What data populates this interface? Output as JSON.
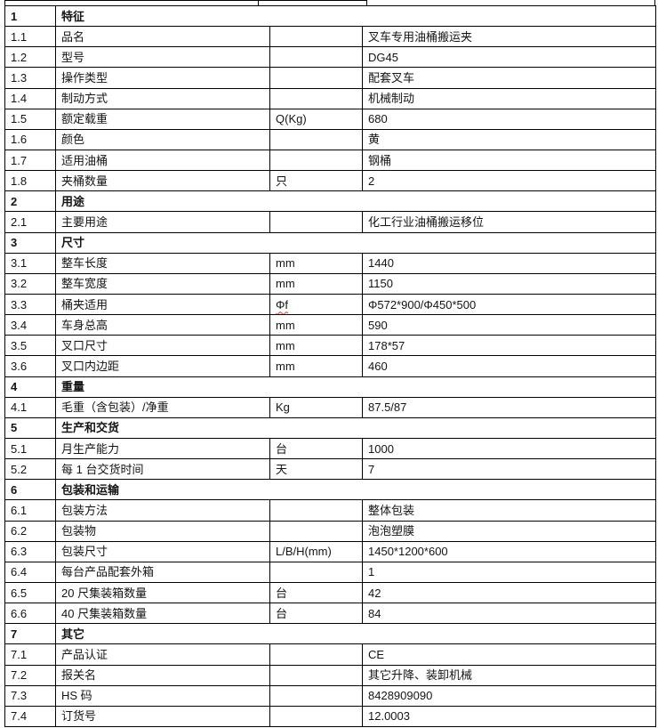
{
  "page": {
    "background": "#ffffff",
    "border_color": "#000000",
    "spellcheck_color": "#e03131"
  },
  "table": {
    "columns": [
      "no",
      "label",
      "unit",
      "value"
    ],
    "rows": [
      {
        "type": "section",
        "no": "1",
        "label": "特征"
      },
      {
        "type": "item",
        "no": "1.1",
        "label": "品名",
        "unit": "",
        "value": "叉车专用油桶搬运夹"
      },
      {
        "type": "item",
        "no": "1.2",
        "label": "型号",
        "unit": "",
        "value": "DG45"
      },
      {
        "type": "item",
        "no": "1.3",
        "label": "操作类型",
        "unit": "",
        "value": "配套叉车"
      },
      {
        "type": "item",
        "no": "1.4",
        "label": "制动方式",
        "unit": "",
        "value": "机械制动"
      },
      {
        "type": "item",
        "no": "1.5",
        "label": "额定载重",
        "unit": "Q(Kg)",
        "value": "680"
      },
      {
        "type": "item",
        "no": "1.6",
        "label": "颜色",
        "unit": "",
        "value": "黄"
      },
      {
        "type": "item",
        "no": "1.7",
        "label": "适用油桶",
        "unit": "",
        "value": "钢桶"
      },
      {
        "type": "item",
        "no": "1.8",
        "label": "夹桶数量",
        "unit": "只",
        "value": "2"
      },
      {
        "type": "section",
        "no": "2",
        "label": "用途"
      },
      {
        "type": "item",
        "no": "2.1",
        "label": "主要用途",
        "unit": "",
        "value": "化工行业油桶搬运移位"
      },
      {
        "type": "section",
        "no": "3",
        "label": "尺寸"
      },
      {
        "type": "item",
        "no": "3.1",
        "label": "整车长度",
        "unit": "mm",
        "value": "1440"
      },
      {
        "type": "item",
        "no": "3.2",
        "label": "整车宽度",
        "unit": "mm",
        "value": "1150"
      },
      {
        "type": "item",
        "no": "3.3",
        "label": "桶夹适用",
        "unit": "Φf",
        "value": "Φ572*900/Φ450*500",
        "unit_spellcheck": true
      },
      {
        "type": "item",
        "no": "3.4",
        "label": "车身总高",
        "unit": "mm",
        "value": "590"
      },
      {
        "type": "item",
        "no": "3.5",
        "label": "叉口尺寸",
        "unit": "mm",
        "value": "178*57"
      },
      {
        "type": "item",
        "no": "3.6",
        "label": "叉口内边距",
        "unit": "mm",
        "value": "460"
      },
      {
        "type": "section",
        "no": "4",
        "label": "重量"
      },
      {
        "type": "item",
        "no": "4.1",
        "label": "毛重（含包装）/净重",
        "unit": "Kg",
        "value": "87.5/87"
      },
      {
        "type": "section",
        "no": "5",
        "label": "生产和交货"
      },
      {
        "type": "item",
        "no": "5.1",
        "label": "月生产能力",
        "unit": "台",
        "value": "1000"
      },
      {
        "type": "item",
        "no": "5.2",
        "label": "每 1 台交货时间",
        "unit": "天",
        "value": "7"
      },
      {
        "type": "section",
        "no": "6",
        "label": "包装和运输"
      },
      {
        "type": "item",
        "no": "6.1",
        "label": "包装方法",
        "unit": "",
        "value": "整体包装"
      },
      {
        "type": "item",
        "no": "6.2",
        "label": "包装物",
        "unit": "",
        "value": "泡泡塑膜"
      },
      {
        "type": "item",
        "no": "6.3",
        "label": "包装尺寸",
        "unit": "L/B/H(mm)",
        "value": "1450*1200*600"
      },
      {
        "type": "item",
        "no": "6.4",
        "label": "每台产品配套外箱",
        "unit": "",
        "value": "1"
      },
      {
        "type": "item",
        "no": "6.5",
        "label": "20 尺集装箱数量",
        "unit": "台",
        "value": "42"
      },
      {
        "type": "item",
        "no": "6.6",
        "label": "40 尺集装箱数量",
        "unit": "台",
        "value": "84"
      },
      {
        "type": "section",
        "no": "7",
        "label": "其它"
      },
      {
        "type": "item",
        "no": "7.1",
        "label": "产品认证",
        "unit": "",
        "value": "CE"
      },
      {
        "type": "item",
        "no": "7.2",
        "label": "报关名",
        "unit": "",
        "value": "其它升降、装卸机械"
      },
      {
        "type": "item",
        "no": "7.3",
        "label": "HS 码",
        "unit": "",
        "value": "8428909090"
      },
      {
        "type": "item",
        "no": "7.4",
        "label": "订货号",
        "unit": "",
        "value": "12.0003"
      }
    ]
  }
}
